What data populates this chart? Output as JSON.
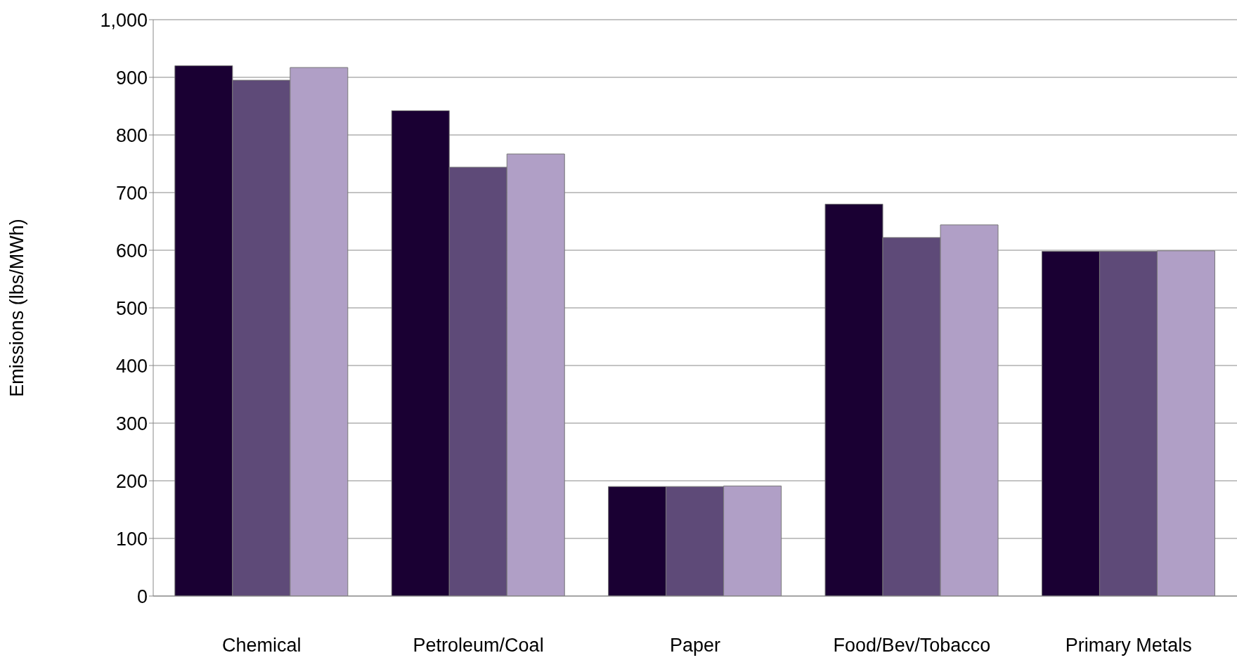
{
  "chart_data": {
    "type": "bar",
    "ylabel": "Emissions (lbs/MWh)",
    "categories": [
      "Chemical",
      "Petroleum/Coal",
      "Paper",
      "Food/Bev/Tobacco",
      "Primary Metals"
    ],
    "series": [
      {
        "color": "#1a0033",
        "values": [
          920,
          842,
          190,
          680,
          598
        ]
      },
      {
        "color": "#5e4a78",
        "values": [
          895,
          744,
          190,
          622,
          598
        ]
      },
      {
        "color": "#b09fc6",
        "values": [
          917,
          767,
          191,
          644,
          599
        ]
      }
    ],
    "ylim": [
      0,
      1000
    ],
    "yticks": [
      {
        "value": 0,
        "label": "0"
      },
      {
        "value": 100,
        "label": "100"
      },
      {
        "value": 200,
        "label": "200"
      },
      {
        "value": 300,
        "label": "300"
      },
      {
        "value": 400,
        "label": "400"
      },
      {
        "value": 500,
        "label": "500"
      },
      {
        "value": 600,
        "label": "600"
      },
      {
        "value": 700,
        "label": "700"
      },
      {
        "value": 800,
        "label": "800"
      },
      {
        "value": 900,
        "label": "900"
      },
      {
        "value": 1000,
        "label": "1,000"
      }
    ],
    "grid": "y"
  }
}
